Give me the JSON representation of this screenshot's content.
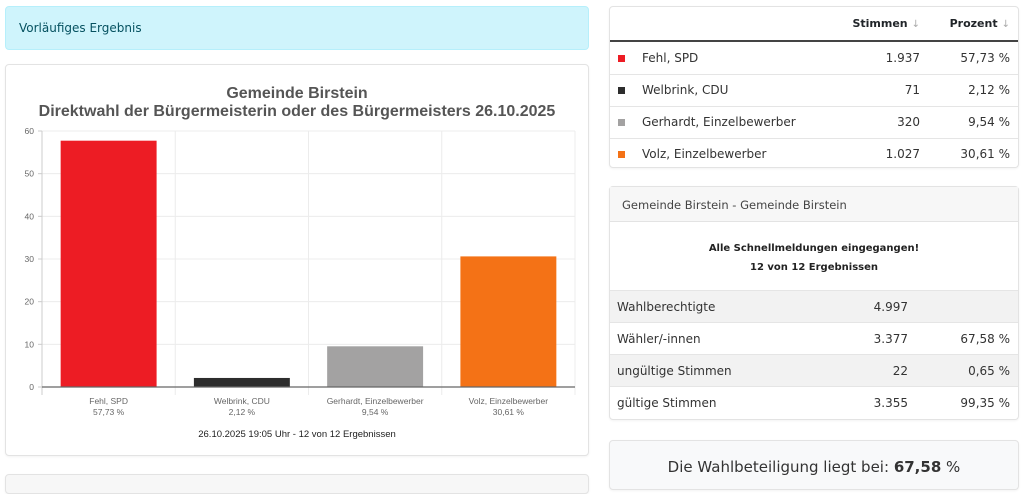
{
  "alert": {
    "text": "Vorläufiges Ergebnis"
  },
  "chart_card": {
    "footer": "26.10.2025 19:05 Uhr - 12 von 12 Ergebnissen"
  },
  "chart_data": {
    "type": "bar",
    "title": "Gemeinde Birstein",
    "subtitle": "Direktwahl der Bürgermeisterin oder des Bürgermeisters 26.10.2025",
    "categories": [
      "Fehl, SPD",
      "Welbrink, CDU",
      "Gerhardt, Einzelbewerber",
      "Volz, Einzelbewerber"
    ],
    "category_sublabels": [
      "57,73 %",
      "2,12 %",
      "9,54 %",
      "30,61 %"
    ],
    "values": [
      57.73,
      2.12,
      9.54,
      30.61
    ],
    "colors": [
      "#ed1c24",
      "#2d2d2d",
      "#a3a2a2",
      "#f47216"
    ],
    "yticks": [
      0,
      10,
      20,
      30,
      40,
      50,
      60
    ],
    "ylim": [
      0,
      60
    ],
    "xlabel": "",
    "ylabel": "",
    "grid": true
  },
  "results_table": {
    "headers": {
      "votes": "Stimmen",
      "percent": "Prozent",
      "sort_icon": "↓"
    },
    "rows": [
      {
        "name": "Fehl, SPD",
        "votes": "1.937",
        "percent": "57,73 %",
        "color": "#ed1c24"
      },
      {
        "name": "Welbrink, CDU",
        "votes": "71",
        "percent": "2,12 %",
        "color": "#2d2d2d"
      },
      {
        "name": "Gerhardt, Einzelbewerber",
        "votes": "320",
        "percent": "9,54 %",
        "color": "#a3a2a2"
      },
      {
        "name": "Volz, Einzelbewerber",
        "votes": "1.027",
        "percent": "30,61 %",
        "color": "#f47216"
      }
    ]
  },
  "info_card": {
    "header": "Gemeinde Birstein - Gemeinde Birstein",
    "message_line1": "Alle Schnellmeldungen eingegangen!",
    "message_line2": "12 von 12 Ergebnissen",
    "stats": [
      {
        "label": "Wahlberechtigte",
        "value": "4.997",
        "percent": ""
      },
      {
        "label": "Wähler/-innen",
        "value": "3.377",
        "percent": "67,58 %"
      },
      {
        "label": "ungültige Stimmen",
        "value": "22",
        "percent": "0,65 %"
      },
      {
        "label": "gültige Stimmen",
        "value": "3.355",
        "percent": "99,35 %"
      }
    ]
  },
  "turnout": {
    "prefix": "Die Wahlbeteiligung liegt bei:",
    "value": "67,58",
    "unit": "%"
  }
}
